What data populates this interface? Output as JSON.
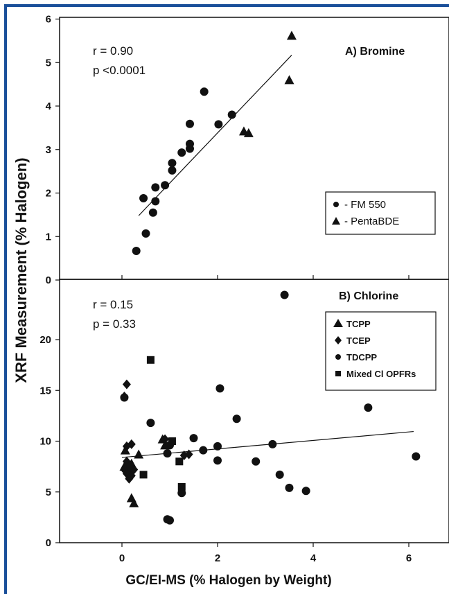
{
  "colors": {
    "frame": "#1a4f9a",
    "ink": "#111111",
    "background": "#ffffff"
  },
  "axes": {
    "ylabel": "XRF Measurement (% Halogen)",
    "xlabel": "GC/EI-MS (% Halogen by Weight)"
  },
  "chart_data": [
    {
      "type": "scatter",
      "title": "A) Bromine",
      "annotations": [
        "r = 0.90",
        "p <0.0001"
      ],
      "xlim": [
        -1,
        7
      ],
      "ylim": [
        0,
        6
      ],
      "xticks": [],
      "yticks": [
        "0",
        "1",
        "2",
        "3",
        "4",
        "5",
        "6"
      ],
      "legend": {
        "placement": "right",
        "entries": [
          {
            "label": "- FM 550",
            "marker": "circle"
          },
          {
            "label": "- PentaBDE",
            "marker": "triangle"
          }
        ]
      },
      "series": [
        {
          "name": "- FM 550",
          "marker": "circle",
          "points": [
            [
              0.3,
              0.67
            ],
            [
              0.5,
              1.07
            ],
            [
              0.45,
              1.88
            ],
            [
              0.65,
              1.55
            ],
            [
              0.7,
              1.81
            ],
            [
              0.7,
              2.13
            ],
            [
              0.9,
              2.18
            ],
            [
              1.05,
              2.52
            ],
            [
              1.05,
              2.69
            ],
            [
              1.25,
              2.93
            ],
            [
              1.42,
              3.02
            ],
            [
              1.42,
              3.13
            ],
            [
              1.42,
              3.59
            ],
            [
              1.72,
              4.33
            ],
            [
              2.02,
              3.58
            ],
            [
              2.3,
              3.8
            ]
          ]
        },
        {
          "name": "- PentaBDE",
          "marker": "triangle",
          "points": [
            [
              2.55,
              3.42
            ],
            [
              2.65,
              3.38
            ],
            [
              3.5,
              4.6
            ],
            [
              3.55,
              5.62
            ]
          ]
        }
      ],
      "regression_line": {
        "x": [
          0.35,
          3.55
        ],
        "y": [
          1.48,
          5.17
        ]
      }
    },
    {
      "type": "scatter",
      "title": "B) Chlorine",
      "annotations": [
        "r = 0.15",
        "p = 0.33"
      ],
      "xlim": [
        -1,
        7
      ],
      "ylim": [
        0,
        26
      ],
      "xticks": [
        "0",
        "2",
        "4",
        "6"
      ],
      "yticks": [
        "0",
        "5",
        "10",
        "15",
        "20"
      ],
      "legend": {
        "placement": "top-right",
        "entries": [
          {
            "label": "TCPP",
            "marker": "triangle"
          },
          {
            "label": "TCEP",
            "marker": "diamond"
          },
          {
            "label": "TDCPP",
            "marker": "circle"
          },
          {
            "label": "Mixed Cl OPFRs",
            "marker": "square"
          }
        ]
      },
      "series": [
        {
          "name": "TCPP",
          "marker": "triangle",
          "points": [
            [
              0.07,
              9.1
            ],
            [
              0.05,
              7.5
            ],
            [
              0.15,
              7.1
            ],
            [
              0.2,
              4.4
            ],
            [
              0.25,
              3.9
            ],
            [
              0.35,
              8.7
            ],
            [
              0.2,
              7.8
            ],
            [
              0.9,
              9.6
            ],
            [
              0.85,
              10.2
            ]
          ]
        },
        {
          "name": "TCEP",
          "marker": "diamond",
          "points": [
            [
              0.1,
              15.6
            ],
            [
              0.05,
              14.4
            ],
            [
              0.2,
              9.7
            ],
            [
              0.1,
              8.0
            ],
            [
              0.15,
              7.5
            ],
            [
              0.05,
              7.2
            ],
            [
              0.1,
              6.8
            ],
            [
              0.15,
              6.3
            ],
            [
              0.2,
              6.6
            ],
            [
              0.25,
              7.2
            ],
            [
              0.9,
              10.2
            ],
            [
              1.3,
              8.6
            ],
            [
              1.4,
              8.7
            ],
            [
              0.1,
              9.5
            ]
          ]
        },
        {
          "name": "TDCPP",
          "marker": "circle",
          "points": [
            [
              3.4,
              24.4
            ],
            [
              2.05,
              15.2
            ],
            [
              2.4,
              12.2
            ],
            [
              5.15,
              13.3
            ],
            [
              0.05,
              14.3
            ],
            [
              0.6,
              11.8
            ],
            [
              1.5,
              10.3
            ],
            [
              0.95,
              8.8
            ],
            [
              1.7,
              9.1
            ],
            [
              2.0,
              9.5
            ],
            [
              2.0,
              8.1
            ],
            [
              1.0,
              9.6
            ],
            [
              2.8,
              8.0
            ],
            [
              3.15,
              9.7
            ],
            [
              3.3,
              6.7
            ],
            [
              3.5,
              5.4
            ],
            [
              3.85,
              5.1
            ],
            [
              6.15,
              8.5
            ],
            [
              1.25,
              4.9
            ],
            [
              0.95,
              2.3
            ],
            [
              1.0,
              2.2
            ]
          ]
        },
        {
          "name": "Mixed Cl OPFRs",
          "marker": "square",
          "points": [
            [
              0.6,
              18.0
            ],
            [
              1.05,
              10.0
            ],
            [
              1.2,
              8.0
            ],
            [
              1.25,
              5.5
            ],
            [
              0.45,
              6.7
            ]
          ]
        }
      ],
      "regression_line": {
        "x": [
          0.0,
          6.1
        ],
        "y": [
          8.4,
          10.95
        ]
      }
    }
  ]
}
